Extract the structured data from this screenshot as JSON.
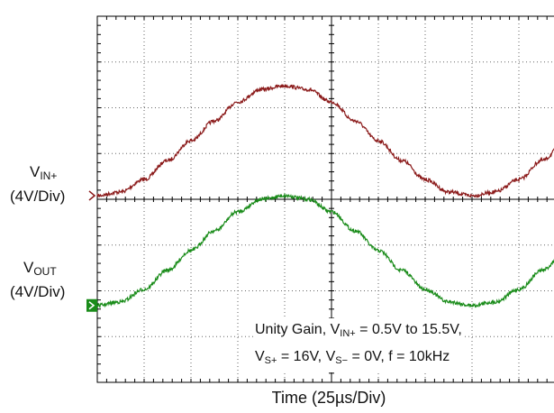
{
  "chart_data": {
    "type": "line",
    "title": "",
    "xlabel": "Time (25µs/Div)",
    "x_units": "µs",
    "xlim": [
      0,
      250
    ],
    "ylim": [
      -16,
      16
    ],
    "grid": true,
    "legend_position": "none",
    "series": [
      {
        "name": "VIN+ (4V/Div)",
        "color": "#8b1a1a",
        "x": [
          0,
          12.5,
          25,
          37.5,
          50,
          62.5,
          75,
          87.5,
          100,
          112.5,
          125,
          137.5,
          150,
          162.5,
          175,
          187.5,
          200,
          212.5,
          225,
          237.5,
          250
        ],
        "y": [
          0.5,
          1.0,
          2.7,
          5.3,
          8.0,
          10.7,
          13.3,
          15.0,
          15.5,
          15.0,
          13.3,
          10.7,
          8.0,
          5.3,
          2.7,
          1.0,
          0.5,
          1.0,
          2.7,
          5.3,
          8.0
        ]
      },
      {
        "name": "VOUT (4V/Div)",
        "color": "#1a8c1a",
        "x": [
          0,
          12.5,
          25,
          37.5,
          50,
          62.5,
          75,
          87.5,
          100,
          112.5,
          125,
          137.5,
          150,
          162.5,
          175,
          187.5,
          200,
          212.5,
          225,
          237.5,
          250
        ],
        "y": [
          0.5,
          1.0,
          2.7,
          5.3,
          8.0,
          10.7,
          13.3,
          15.0,
          15.5,
          15.0,
          13.3,
          10.7,
          8.0,
          5.3,
          2.7,
          1.0,
          0.5,
          1.0,
          2.7,
          5.3,
          8.0
        ]
      }
    ],
    "annotation": {
      "line1_a": "Unity Gain, V",
      "line1_sub": "IN+",
      "line1_b": " = 0.5V to 15.5V,",
      "line2_a": "V",
      "line2_sub1": "S+",
      "line2_b": " = 16V, V",
      "line2_sub2": "S−",
      "line2_c": " = 0V, f = 10kHz"
    },
    "channel_labels": [
      {
        "main": "V",
        "sub": "IN+",
        "scale": "(4V/Div)"
      },
      {
        "main": "V",
        "sub": "OUT",
        "scale": "(4V/Div)"
      }
    ]
  }
}
